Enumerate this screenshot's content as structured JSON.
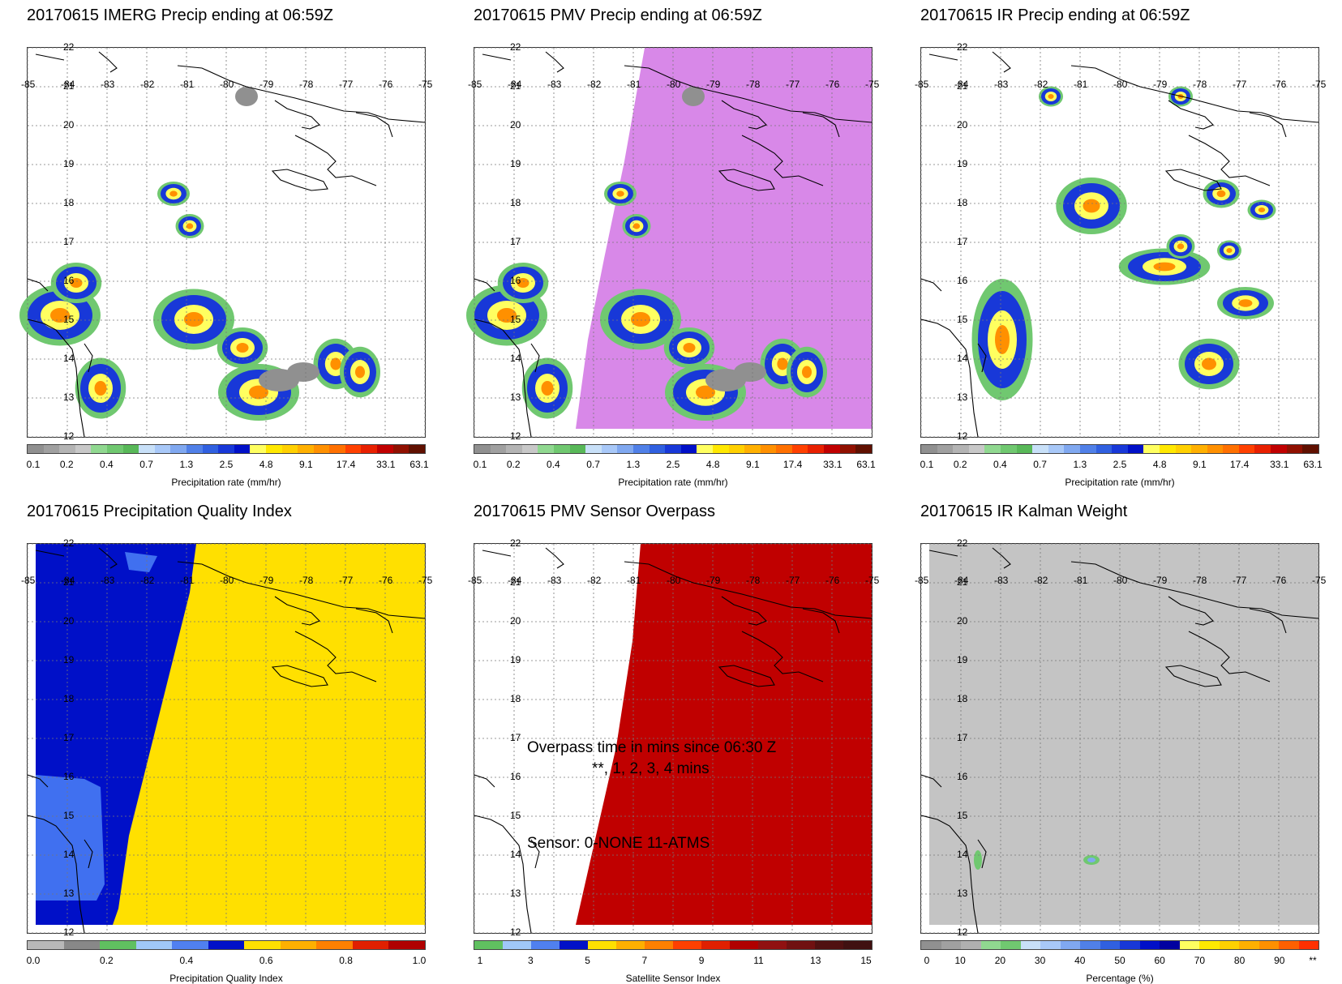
{
  "date": "20170615",
  "lon_labels": [
    "-85",
    "-84",
    "-83",
    "-82",
    "-81",
    "-80",
    "-79",
    "-78",
    "-77",
    "-76",
    "-75"
  ],
  "lat_labels": [
    "22",
    "21",
    "20",
    "19",
    "18",
    "17",
    "16",
    "15",
    "14",
    "13",
    "12"
  ],
  "panels": [
    {
      "title": "20170615 IMERG Precip ending at 06:59Z",
      "colorbar_label": "Precipitation rate (mm/hr)",
      "ticks": [
        "0.1",
        "0.2",
        "0.4",
        "0.7",
        "1.3",
        "2.5",
        "4.8",
        "9.1",
        "17.4",
        "33.1",
        "63.1"
      ]
    },
    {
      "title": "20170615 PMV Precip ending at 06:59Z",
      "colorbar_label": "Precipitation rate (mm/hr)",
      "ticks": [
        "0.1",
        "0.2",
        "0.4",
        "0.7",
        "1.3",
        "2.5",
        "4.8",
        "9.1",
        "17.4",
        "33.1",
        "63.1"
      ]
    },
    {
      "title": "20170615 IR Precip ending at 06:59Z",
      "colorbar_label": "Precipitation rate (mm/hr)",
      "ticks": [
        "0.1",
        "0.2",
        "0.4",
        "0.7",
        "1.3",
        "2.5",
        "4.8",
        "9.1",
        "17.4",
        "33.1",
        "63.1"
      ]
    },
    {
      "title": "20170615 Precipitation Quality Index",
      "colorbar_label": "Precipitation Quality Index",
      "ticks": [
        "0.0",
        "0.2",
        "0.4",
        "0.6",
        "0.8",
        "1.0"
      ]
    },
    {
      "title": "20170615 PMV Sensor Overpass",
      "colorbar_label": "Satellite Sensor Index",
      "ticks": [
        "1",
        "3",
        "5",
        "7",
        "9",
        "11",
        "13",
        "15"
      ],
      "overlay": {
        "line1": "Overpass time in mins since 06:30 Z",
        "line2": "**, 1, 2, 3, 4 mins",
        "line3": "Sensor:   0-NONE 11-ATMS"
      }
    },
    {
      "title": "20170615 IR Kalman Weight",
      "colorbar_label": "Percentage (%)",
      "ticks": [
        "0",
        "10",
        "20",
        "30",
        "40",
        "50",
        "60",
        "70",
        "80",
        "90",
        "**"
      ]
    }
  ],
  "colors": {
    "precip_scale": [
      "#909090",
      "#a0a0a0",
      "#b4b4b4",
      "#c8c8c8",
      "#90d890",
      "#70c870",
      "#58b858",
      "#c8e0f8",
      "#a8c8f8",
      "#80a8f0",
      "#5080e8",
      "#3060e0",
      "#1838d8",
      "#0010c8",
      "#ffff60",
      "#ffe800",
      "#ffd000",
      "#ffb000",
      "#ff9000",
      "#ff7000",
      "#ff4000",
      "#e82000",
      "#c00000",
      "#901000",
      "#601000"
    ],
    "pqi_scale": [
      "#b8b8b8",
      "#888888",
      "#60c060",
      "#a0c8f8",
      "#5080f0",
      "#0010c8",
      "#ffe000",
      "#ffb000",
      "#ff8000",
      "#e02000",
      "#b00000"
    ],
    "sensor_scale": [
      "#60c060",
      "#a0c8f8",
      "#5080f0",
      "#0010c8",
      "#ffe000",
      "#ffb000",
      "#ff8000",
      "#ff4000",
      "#e02000",
      "#b00000",
      "#901010",
      "#701010",
      "#501010",
      "#401010"
    ],
    "weight_scale": [
      "#909090",
      "#a0a0a0",
      "#b0b0b0",
      "#90d890",
      "#70c870",
      "#c8e0f8",
      "#a8c8f8",
      "#80a8f0",
      "#5080e8",
      "#3060e0",
      "#1838d8",
      "#0010c8",
      "#0000a0",
      "#ffff60",
      "#ffe800",
      "#ffd000",
      "#ffb000",
      "#ff9000",
      "#ff6000",
      "#ff3000"
    ],
    "pmv_nodata": "#d888e8",
    "pqi_low": "#0010c8",
    "pqi_mid": "#4070f0",
    "pqi_high": "#ffe000",
    "sensor_fill": "#c00000",
    "kalman_gray": "#c4c4c4"
  }
}
